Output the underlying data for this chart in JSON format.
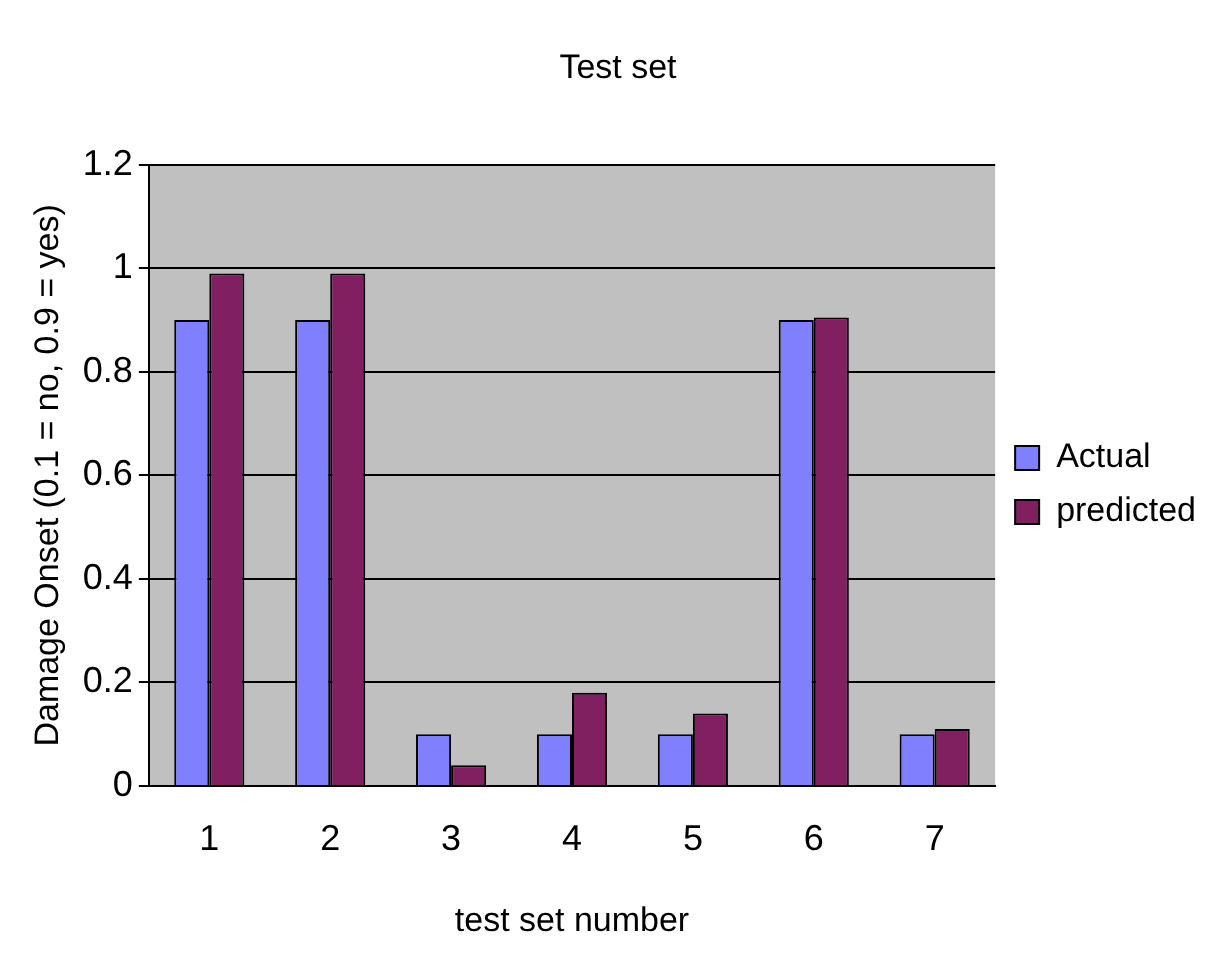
{
  "chart_data": {
    "type": "bar",
    "title": "Test set",
    "xlabel": "test set number",
    "ylabel": "Damage Onset (0.1 = no, 0.9 = yes)",
    "categories": [
      "1",
      "2",
      "3",
      "4",
      "5",
      "6",
      "7"
    ],
    "series": [
      {
        "name": "Actual",
        "color": "#8080ff",
        "values": [
          0.9,
          0.9,
          0.1,
          0.1,
          0.1,
          0.9,
          0.1
        ]
      },
      {
        "name": "predicted",
        "color": "#802060",
        "values": [
          0.99,
          0.99,
          0.04,
          0.18,
          0.14,
          0.905,
          0.11
        ]
      }
    ],
    "ylim": [
      0,
      1.2
    ],
    "yticks": [
      0,
      {
        "value": 0.2,
        "label": "0.2"
      },
      {
        "value": 0.4,
        "label": "0.4"
      },
      {
        "value": 0.6,
        "label": "0.6"
      },
      {
        "value": 0.8,
        "label": "0.8"
      },
      1,
      {
        "value": 1.2,
        "label": "1.2"
      }
    ],
    "grid": "y",
    "legend": "right"
  }
}
